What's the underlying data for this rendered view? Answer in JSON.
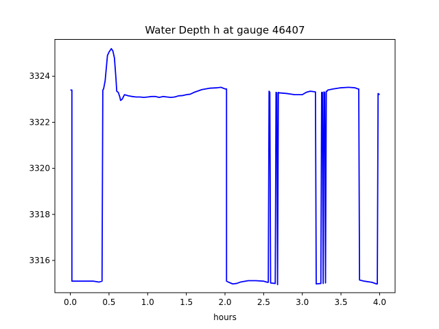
{
  "chart_data": {
    "type": "line",
    "title": "Water Depth h at gauge 46407",
    "xlabel": "hours",
    "ylabel": "",
    "xlim": [
      -0.2,
      4.2
    ],
    "ylim": [
      3314.6,
      3325.6
    ],
    "x_ticks": [
      0.0,
      0.5,
      1.0,
      1.5,
      2.0,
      2.5,
      3.0,
      3.5,
      4.0
    ],
    "x_tick_labels": [
      "0.0",
      "0.5",
      "1.0",
      "1.5",
      "2.0",
      "2.5",
      "3.0",
      "3.5",
      "4.0"
    ],
    "y_ticks": [
      3316,
      3318,
      3320,
      3322,
      3324
    ],
    "y_tick_labels": [
      "3316",
      "3318",
      "3320",
      "3322",
      "3324"
    ],
    "grid": false,
    "series": [
      {
        "color": "#0000ff",
        "x": [
          0.0,
          0.02,
          0.02,
          0.1,
          0.2,
          0.3,
          0.37,
          0.41,
          0.42,
          0.43,
          0.45,
          0.48,
          0.5,
          0.53,
          0.55,
          0.57,
          0.59,
          0.6,
          0.62,
          0.64,
          0.65,
          0.67,
          0.7,
          0.75,
          0.8,
          0.85,
          0.9,
          0.95,
          1.0,
          1.05,
          1.1,
          1.15,
          1.2,
          1.25,
          1.3,
          1.35,
          1.4,
          1.45,
          1.5,
          1.55,
          1.6,
          1.7,
          1.8,
          1.9,
          1.95,
          2.0,
          2.02,
          2.02,
          2.05,
          2.1,
          2.15,
          2.2,
          2.3,
          2.4,
          2.5,
          2.55,
          2.56,
          2.57,
          2.58,
          2.59,
          2.65,
          2.66,
          2.67,
          2.68,
          2.69,
          2.7,
          2.8,
          2.9,
          3.0,
          3.05,
          3.1,
          3.15,
          3.17,
          3.18,
          3.24,
          3.25,
          3.26,
          3.27,
          3.28,
          3.29,
          3.3,
          3.31,
          3.32,
          3.33,
          3.4,
          3.5,
          3.6,
          3.68,
          3.72,
          3.73,
          3.74,
          3.8,
          3.9,
          3.96,
          3.97,
          3.98,
          4.0
        ],
        "y": [
          3323.4,
          3323.4,
          3315.1,
          3315.1,
          3315.1,
          3315.1,
          3315.06,
          3315.1,
          3323.4,
          3323.45,
          3323.8,
          3324.9,
          3325.05,
          3325.2,
          3325.1,
          3324.8,
          3323.9,
          3323.35,
          3323.3,
          3323.1,
          3322.95,
          3323.0,
          3323.2,
          3323.15,
          3323.12,
          3323.1,
          3323.1,
          3323.08,
          3323.1,
          3323.12,
          3323.12,
          3323.08,
          3323.12,
          3323.1,
          3323.08,
          3323.1,
          3323.15,
          3323.16,
          3323.2,
          3323.22,
          3323.3,
          3323.42,
          3323.48,
          3323.5,
          3323.52,
          3323.45,
          3323.45,
          3315.1,
          3315.05,
          3314.98,
          3315.0,
          3315.06,
          3315.12,
          3315.12,
          3315.1,
          3315.05,
          3315.05,
          3323.35,
          3323.3,
          3315.02,
          3315.0,
          3323.3,
          3323.28,
          3314.95,
          3323.3,
          3323.28,
          3323.25,
          3323.2,
          3323.2,
          3323.3,
          3323.35,
          3323.33,
          3323.32,
          3314.98,
          3315.0,
          3323.3,
          3323.3,
          3315.0,
          3323.32,
          3323.3,
          3315.02,
          3323.35,
          3323.35,
          3323.4,
          3323.45,
          3323.5,
          3323.52,
          3323.5,
          3323.45,
          3323.45,
          3315.15,
          3315.1,
          3315.05,
          3314.98,
          3314.98,
          3323.25,
          3323.2
        ]
      }
    ]
  }
}
